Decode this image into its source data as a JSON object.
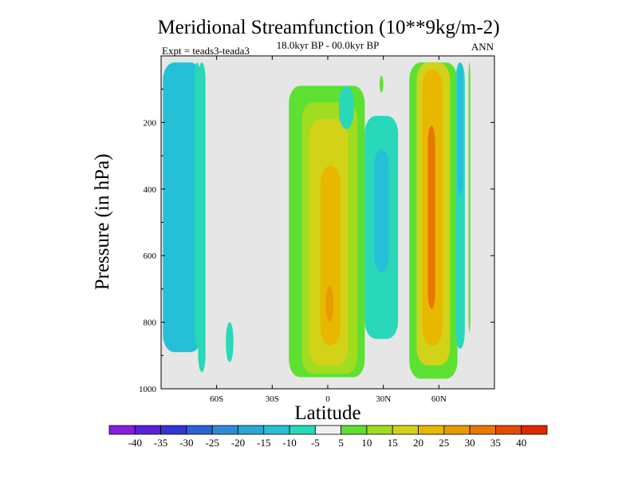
{
  "chart_data": {
    "type": "heatmap",
    "title": "Meridional Streamfunction (10**9kg/m-2)",
    "subtitle": "18.0kyr BP - 00.0kyr BP",
    "left_annotation": "Expt = teads3-teada3",
    "right_annotation": "ANN",
    "xlabel": "Latitude",
    "ylabel": "Pressure (in hPa)",
    "xlim": [
      -90,
      90
    ],
    "ylim": [
      1000,
      0
    ],
    "x_ticks": [
      {
        "value": -60,
        "label": "60S"
      },
      {
        "value": -30,
        "label": "30S"
      },
      {
        "value": 0,
        "label": "0"
      },
      {
        "value": 30,
        "label": "30N"
      },
      {
        "value": 60,
        "label": "60N"
      }
    ],
    "y_ticks": [
      {
        "value": 200,
        "label": "200"
      },
      {
        "value": 400,
        "label": "400"
      },
      {
        "value": 600,
        "label": "600"
      },
      {
        "value": 800,
        "label": "800"
      },
      {
        "value": 1000,
        "label": "1000"
      }
    ],
    "background_color": "#e6e6e6",
    "colorbar": {
      "labels": [
        "-40",
        "-35",
        "-30",
        "-25",
        "-20",
        "-15",
        "-10",
        "-5",
        "5",
        "10",
        "15",
        "20",
        "25",
        "30",
        "35",
        "40"
      ],
      "colors": [
        "#8a1de0",
        "#5a1fdc",
        "#3236d6",
        "#2b62d8",
        "#2f8ad6",
        "#2da5d8",
        "#25c0d8",
        "#28d8b8",
        "#f0f0f0",
        "#5ee033",
        "#a0dc20",
        "#d2d318",
        "#e8b800",
        "#e89a00",
        "#e67800",
        "#e44a00",
        "#dc2a00"
      ]
    },
    "regions": [
      {
        "name": "sh-polar-cell",
        "value": -12,
        "lat": [
          -89,
          -68
        ],
        "p": [
          20,
          890
        ]
      },
      {
        "name": "sh-polar-cell-core",
        "value": -15,
        "lat": [
          -84,
          -74
        ],
        "p": [
          20,
          700
        ]
      },
      {
        "name": "sh-polar-cell-edge",
        "value": -8,
        "lat": [
          -72,
          -69
        ],
        "p": [
          20,
          870
        ]
      },
      {
        "name": "sh-narrow-band",
        "value": -10,
        "lat": [
          -70,
          -66
        ],
        "p": [
          20,
          950
        ]
      },
      {
        "name": "sh-small-blob",
        "value": -9,
        "lat": [
          -55,
          -51
        ],
        "p": [
          800,
          920
        ]
      },
      {
        "name": "hadley-outer",
        "value": 8,
        "lat": [
          -21,
          20
        ],
        "p": [
          90,
          965
        ]
      },
      {
        "name": "hadley-ring-10",
        "value": 12,
        "lat": [
          -14,
          16
        ],
        "p": [
          140,
          955
        ]
      },
      {
        "name": "hadley-ring-15",
        "value": 17,
        "lat": [
          -10,
          11
        ],
        "p": [
          190,
          930
        ]
      },
      {
        "name": "hadley-core",
        "value": 22,
        "lat": [
          -4,
          7
        ],
        "p": [
          330,
          870
        ]
      },
      {
        "name": "hadley-peak",
        "value": 28,
        "lat": [
          -1,
          3
        ],
        "p": [
          690,
          800
        ]
      },
      {
        "name": "tropical-negative-band",
        "value": -10,
        "lat": [
          20,
          38
        ],
        "p": [
          180,
          850
        ]
      },
      {
        "name": "tropical-negative-core",
        "value": -15,
        "lat": [
          25,
          33
        ],
        "p": [
          280,
          650
        ]
      },
      {
        "name": "tropical-negative-strip",
        "value": -10,
        "lat": [
          6,
          14
        ],
        "p": [
          90,
          220
        ]
      },
      {
        "name": "upper-green-streak",
        "value": 6,
        "lat": [
          28,
          30
        ],
        "p": [
          60,
          110
        ]
      },
      {
        "name": "nh-cell-outer",
        "value": 8,
        "lat": [
          44,
          70
        ],
        "p": [
          20,
          970
        ]
      },
      {
        "name": "nh-cell-ring-15",
        "value": 17,
        "lat": [
          48,
          66
        ],
        "p": [
          20,
          930
        ]
      },
      {
        "name": "nh-cell-ring-25",
        "value": 24,
        "lat": [
          51,
          62
        ],
        "p": [
          40,
          870
        ]
      },
      {
        "name": "nh-cell-core",
        "value": 31,
        "lat": [
          54,
          58
        ],
        "p": [
          210,
          760
        ]
      },
      {
        "name": "nh-cell-peak",
        "value": 34,
        "lat": [
          55,
          57
        ],
        "p": [
          380,
          640
        ]
      },
      {
        "name": "nh-polar-band",
        "value": -10,
        "lat": [
          69,
          74
        ],
        "p": [
          20,
          880
        ]
      },
      {
        "name": "nh-polar-band-core",
        "value": -14,
        "lat": [
          70,
          73
        ],
        "p": [
          20,
          420
        ]
      },
      {
        "name": "nh-far-polar-strip",
        "value": 7,
        "lat": [
          76,
          77
        ],
        "p": [
          20,
          830
        ]
      }
    ]
  }
}
